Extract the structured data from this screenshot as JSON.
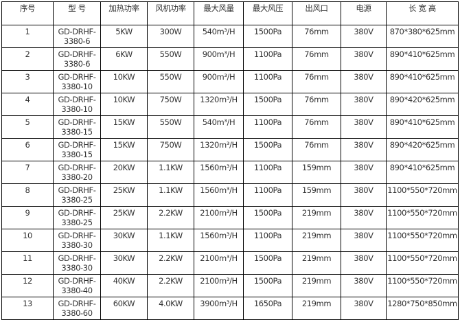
{
  "headers": [
    "序号",
    "型 号",
    "加热功率",
    "风机功率",
    "最大风量",
    "最大风压",
    "出风口",
    "电源",
    "长 宽 高"
  ],
  "rows": [
    [
      "1",
      "GD-DRHF-3380-6",
      "5KW",
      "300W",
      "540m³/H",
      "1500Pa",
      "76mm",
      "380V",
      "870*380*625mm"
    ],
    [
      "2",
      "GD-DRHF-3380-6",
      "6KW",
      "550W",
      "900m³/H",
      "1100Pa",
      "76mm",
      "380V",
      "890*410*625mm"
    ],
    [
      "3",
      "GD-DRHF-3380-10",
      "10KW",
      "550W",
      "900m³/H",
      "1100Pa",
      "76mm",
      "380V",
      "890*410*625mm"
    ],
    [
      "4",
      "GD-DRHF-3380-10",
      "10KW",
      "750W",
      "1320m³/H",
      "1500Pa",
      "76mm",
      "380V",
      "890*420*625mm"
    ],
    [
      "5",
      "GD-DRHF-3380-15",
      "15KW",
      "550W",
      "540m³/H",
      "1100Pa",
      "76mm",
      "380V",
      "890*410*625mm"
    ],
    [
      "6",
      "GD-DRHF-3380-15",
      "15KW",
      "750W",
      "1320m³/H",
      "1500Pa",
      "76mm",
      "380V",
      "890*420*625mm"
    ],
    [
      "7",
      "GD-DRHF-3380-20",
      "20KW",
      "1.1KW",
      "1560m³/H",
      "1100Pa",
      "159mm",
      "380V",
      "890*410*625mm"
    ],
    [
      "8",
      "GD-DRHF-3380-25",
      "25KW",
      "1.1KW",
      "1560m³/H",
      "1100Pa",
      "159mm",
      "380V",
      "1100*550*720mm"
    ],
    [
      "9",
      "GD-DRHF-3380-25",
      "25KW",
      "2.2KW",
      "2100m³/H",
      "1500Pa",
      "219mm",
      "380V",
      "1100*550*720mm"
    ],
    [
      "10",
      "GD-DRHF-3380-30",
      "30KW",
      "1.1KW",
      "1560m³/H",
      "1100Pa",
      "219mm",
      "380V",
      "1100*550*720mm"
    ],
    [
      "11",
      "GD-DRHF-3380-30",
      "30KW",
      "2.2KW",
      "2100m³/H",
      "1500Pa",
      "219mm",
      "380V",
      "1100*550*720mm"
    ],
    [
      "12",
      "GD-DRHF-3380-40",
      "40KW",
      "2.2KW",
      "2100m³/H",
      "1500Pa",
      "219mm",
      "380V",
      "1100*550*720mm"
    ],
    [
      "13",
      "GD-DRHF-3380-60",
      "60KW",
      "4.0KW",
      "3900m³/H",
      "1650Pa",
      "219mm",
      "380V",
      "1280*750*850mm"
    ]
  ]
}
